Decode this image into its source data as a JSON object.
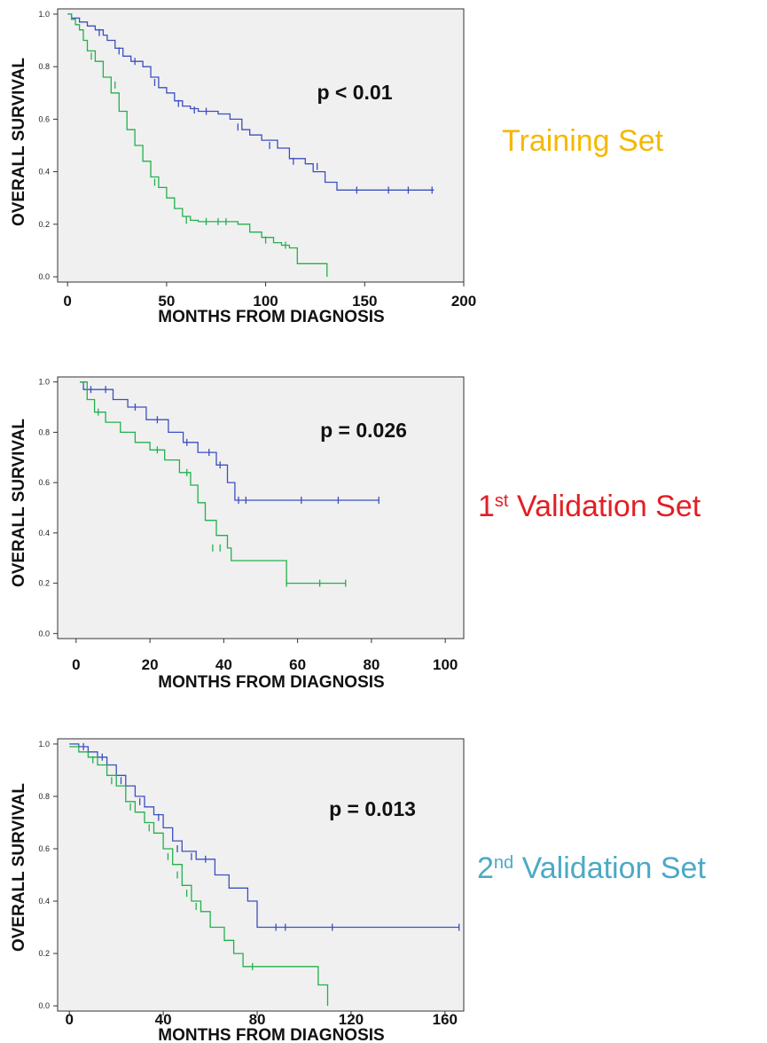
{
  "chart_data": [
    {
      "type": "line",
      "subtype": "kaplan-meier",
      "xlabel": "MONTHS FROM DIAGNOSIS",
      "ylabel": "OVERALL SURVIVAL",
      "xlim": [
        -5,
        200
      ],
      "ylim": [
        -0.02,
        1.02
      ],
      "xticks": [
        0,
        50,
        100,
        150,
        200
      ],
      "xtick_labels": [
        "0",
        "50",
        "100",
        "150",
        "200"
      ],
      "yticks": [
        0,
        0.2,
        0.4,
        0.6,
        0.8,
        1.0
      ],
      "ytick_labels": [
        "0.0",
        "0.2",
        "0.4",
        "0.6",
        "0.8",
        "1.0"
      ],
      "annotation": "p < 0.01",
      "set_label": {
        "main": "Training Set",
        "sup": "",
        "rest": "",
        "color": "#f5b800"
      },
      "colors": {
        "background": "#f0f0f0",
        "series_a": "#3c4fc0",
        "series_b": "#22b14c"
      },
      "series": [
        {
          "values": [
            [
              0,
              1.0
            ],
            [
              2,
              0.985
            ],
            [
              6,
              0.97
            ],
            [
              10,
              0.955
            ],
            [
              14,
              0.94
            ],
            [
              18,
              0.92
            ],
            [
              20,
              0.9
            ],
            [
              24,
              0.87
            ],
            [
              28,
              0.84
            ],
            [
              32,
              0.82
            ],
            [
              38,
              0.8
            ],
            [
              42,
              0.76
            ],
            [
              46,
              0.72
            ],
            [
              50,
              0.7
            ],
            [
              54,
              0.67
            ],
            [
              58,
              0.65
            ],
            [
              62,
              0.64
            ],
            [
              66,
              0.63
            ],
            [
              76,
              0.62
            ],
            [
              82,
              0.6
            ],
            [
              88,
              0.56
            ],
            [
              92,
              0.54
            ],
            [
              98,
              0.52
            ],
            [
              106,
              0.49
            ],
            [
              112,
              0.45
            ],
            [
              120,
              0.43
            ],
            [
              124,
              0.4
            ],
            [
              130,
              0.36
            ],
            [
              136,
              0.33
            ],
            [
              185,
              0.33
            ]
          ],
          "censored": [
            [
              16,
              0.93
            ],
            [
              26,
              0.86
            ],
            [
              34,
              0.82
            ],
            [
              44,
              0.74
            ],
            [
              56,
              0.66
            ],
            [
              64,
              0.635
            ],
            [
              70,
              0.63
            ],
            [
              86,
              0.57
            ],
            [
              102,
              0.5
            ],
            [
              114,
              0.44
            ],
            [
              126,
              0.42
            ],
            [
              146,
              0.33
            ],
            [
              162,
              0.33
            ],
            [
              172,
              0.33
            ],
            [
              184,
              0.33
            ]
          ]
        },
        {
          "values": [
            [
              0,
              1.0
            ],
            [
              2,
              0.98
            ],
            [
              4,
              0.96
            ],
            [
              6,
              0.94
            ],
            [
              8,
              0.9
            ],
            [
              10,
              0.86
            ],
            [
              14,
              0.82
            ],
            [
              18,
              0.76
            ],
            [
              22,
              0.7
            ],
            [
              26,
              0.63
            ],
            [
              30,
              0.56
            ],
            [
              34,
              0.5
            ],
            [
              38,
              0.44
            ],
            [
              42,
              0.38
            ],
            [
              46,
              0.34
            ],
            [
              50,
              0.3
            ],
            [
              54,
              0.26
            ],
            [
              58,
              0.23
            ],
            [
              62,
              0.215
            ],
            [
              66,
              0.21
            ],
            [
              82,
              0.21
            ],
            [
              86,
              0.2
            ],
            [
              92,
              0.17
            ],
            [
              98,
              0.15
            ],
            [
              104,
              0.13
            ],
            [
              108,
              0.12
            ],
            [
              112,
              0.11
            ],
            [
              116,
              0.05
            ],
            [
              131,
              0.05
            ],
            [
              131,
              0.0
            ]
          ],
          "censored": [
            [
              12,
              0.84
            ],
            [
              24,
              0.73
            ],
            [
              44,
              0.36
            ],
            [
              60,
              0.215
            ],
            [
              70,
              0.21
            ],
            [
              76,
              0.21
            ],
            [
              80,
              0.21
            ],
            [
              100,
              0.14
            ],
            [
              110,
              0.12
            ]
          ]
        }
      ]
    },
    {
      "type": "line",
      "subtype": "kaplan-meier",
      "xlabel": "MONTHS FROM DIAGNOSIS",
      "ylabel": "OVERALL SURVIVAL",
      "xlim": [
        -5,
        105
      ],
      "ylim": [
        -0.02,
        1.02
      ],
      "xticks": [
        0,
        20,
        40,
        60,
        80,
        100
      ],
      "xtick_labels": [
        "0",
        "20",
        "40",
        "60",
        "80",
        "100"
      ],
      "yticks": [
        0,
        0.2,
        0.4,
        0.6,
        0.8,
        1.0
      ],
      "ytick_labels": [
        "0.0",
        "0.2",
        "0.4",
        "0.6",
        "0.8",
        "1.0"
      ],
      "annotation": "p = 0.026",
      "set_label": {
        "main": "1",
        "sup": "st",
        "rest": " Validation Set",
        "color": "#e31e24"
      },
      "colors": {
        "background": "#f0f0f0",
        "series_a": "#3c4fc0",
        "series_b": "#22b14c"
      },
      "series": [
        {
          "values": [
            [
              1,
              1.0
            ],
            [
              2,
              0.97
            ],
            [
              10,
              0.93
            ],
            [
              14,
              0.9
            ],
            [
              19,
              0.85
            ],
            [
              25,
              0.8
            ],
            [
              29,
              0.76
            ],
            [
              33,
              0.72
            ],
            [
              38,
              0.67
            ],
            [
              41,
              0.6
            ],
            [
              43,
              0.53
            ],
            [
              82,
              0.53
            ]
          ],
          "censored": [
            [
              4,
              0.97
            ],
            [
              8,
              0.97
            ],
            [
              16,
              0.9
            ],
            [
              22,
              0.85
            ],
            [
              30,
              0.76
            ],
            [
              36,
              0.72
            ],
            [
              39,
              0.67
            ],
            [
              44,
              0.53
            ],
            [
              46,
              0.53
            ],
            [
              61,
              0.53
            ],
            [
              71,
              0.53
            ],
            [
              82,
              0.53
            ]
          ]
        },
        {
          "values": [
            [
              1,
              1.0
            ],
            [
              3,
              0.93
            ],
            [
              5,
              0.88
            ],
            [
              8,
              0.84
            ],
            [
              12,
              0.8
            ],
            [
              16,
              0.76
            ],
            [
              20,
              0.73
            ],
            [
              24,
              0.69
            ],
            [
              28,
              0.64
            ],
            [
              31,
              0.59
            ],
            [
              33,
              0.52
            ],
            [
              35,
              0.45
            ],
            [
              38,
              0.39
            ],
            [
              41,
              0.34
            ],
            [
              42,
              0.29
            ],
            [
              55,
              0.29
            ],
            [
              57,
              0.25
            ],
            [
              57,
              0.2
            ],
            [
              73,
              0.2
            ]
          ],
          "censored": [
            [
              6,
              0.88
            ],
            [
              22,
              0.73
            ],
            [
              30,
              0.64
            ],
            [
              37,
              0.34
            ],
            [
              39,
              0.34
            ],
            [
              57,
              0.2
            ],
            [
              66,
              0.2
            ],
            [
              73,
              0.2
            ]
          ]
        }
      ]
    },
    {
      "type": "line",
      "subtype": "kaplan-meier",
      "xlabel": "MONTHS FROM DIAGNOSIS",
      "ylabel": "OVERALL SURVIVAL",
      "xlim": [
        -5,
        168
      ],
      "ylim": [
        -0.02,
        1.02
      ],
      "xticks": [
        0,
        40,
        80,
        120,
        160
      ],
      "xtick_labels": [
        "0",
        "40",
        "80",
        "120",
        "160"
      ],
      "yticks": [
        0,
        0.2,
        0.4,
        0.6,
        0.8,
        1.0
      ],
      "ytick_labels": [
        "0.0",
        "0.2",
        "0.4",
        "0.6",
        "0.8",
        "1.0"
      ],
      "annotation": "p = 0.013",
      "set_label": {
        "main": "2",
        "sup": "nd",
        "rest": " Validation Set",
        "color": "#4aaac6"
      },
      "colors": {
        "background": "#f0f0f0",
        "series_a": "#3c4fc0",
        "series_b": "#22b14c"
      },
      "series": [
        {
          "values": [
            [
              0,
              1.0
            ],
            [
              4,
              0.99
            ],
            [
              8,
              0.97
            ],
            [
              12,
              0.95
            ],
            [
              16,
              0.92
            ],
            [
              20,
              0.88
            ],
            [
              24,
              0.84
            ],
            [
              28,
              0.8
            ],
            [
              32,
              0.76
            ],
            [
              36,
              0.73
            ],
            [
              40,
              0.68
            ],
            [
              44,
              0.63
            ],
            [
              48,
              0.59
            ],
            [
              54,
              0.56
            ],
            [
              62,
              0.5
            ],
            [
              68,
              0.45
            ],
            [
              76,
              0.4
            ],
            [
              80,
              0.3
            ],
            [
              166,
              0.3
            ]
          ],
          "censored": [
            [
              6,
              0.99
            ],
            [
              14,
              0.95
            ],
            [
              22,
              0.86
            ],
            [
              30,
              0.78
            ],
            [
              38,
              0.72
            ],
            [
              46,
              0.6
            ],
            [
              52,
              0.57
            ],
            [
              58,
              0.56
            ],
            [
              88,
              0.3
            ],
            [
              92,
              0.3
            ],
            [
              112,
              0.3
            ],
            [
              166,
              0.3
            ]
          ]
        },
        {
          "values": [
            [
              0,
              0.99
            ],
            [
              4,
              0.97
            ],
            [
              8,
              0.95
            ],
            [
              12,
              0.92
            ],
            [
              16,
              0.88
            ],
            [
              20,
              0.84
            ],
            [
              24,
              0.78
            ],
            [
              28,
              0.74
            ],
            [
              32,
              0.7
            ],
            [
              36,
              0.66
            ],
            [
              40,
              0.6
            ],
            [
              44,
              0.54
            ],
            [
              48,
              0.46
            ],
            [
              52,
              0.4
            ],
            [
              56,
              0.36
            ],
            [
              60,
              0.3
            ],
            [
              66,
              0.25
            ],
            [
              70,
              0.2
            ],
            [
              74,
              0.15
            ],
            [
              104,
              0.15
            ],
            [
              106,
              0.08
            ],
            [
              110,
              0.08
            ],
            [
              110,
              0.0
            ]
          ],
          "censored": [
            [
              10,
              0.94
            ],
            [
              18,
              0.86
            ],
            [
              26,
              0.76
            ],
            [
              34,
              0.68
            ],
            [
              42,
              0.57
            ],
            [
              46,
              0.5
            ],
            [
              50,
              0.43
            ],
            [
              54,
              0.38
            ],
            [
              78,
              0.15
            ]
          ]
        }
      ]
    }
  ]
}
